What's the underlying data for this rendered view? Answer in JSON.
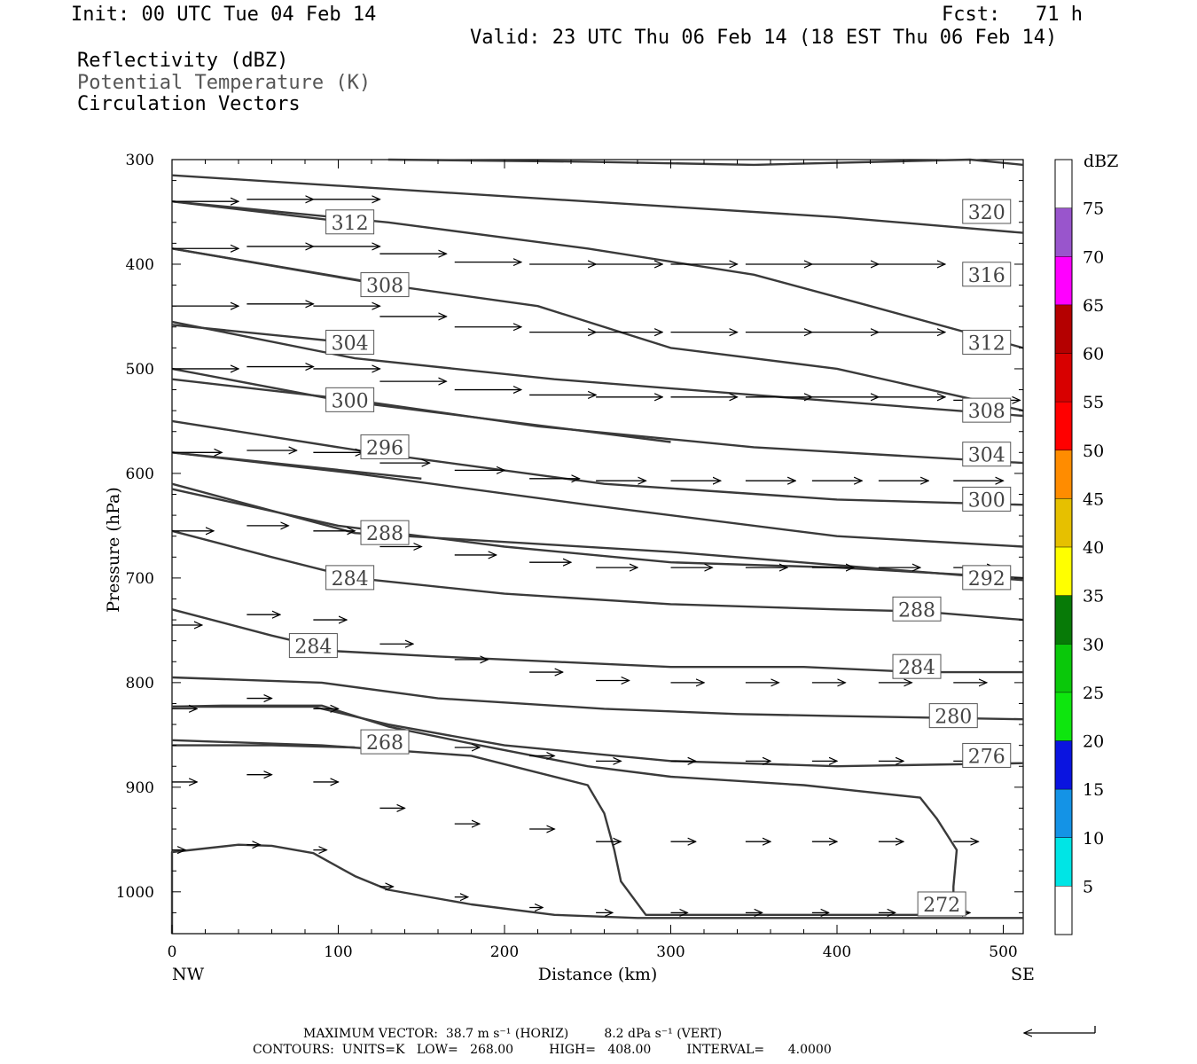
{
  "header": {
    "init": "Init: 00 UTC Tue 04 Feb 14",
    "fcst": "Fcst:   71 h",
    "valid": "Valid: 23 UTC Thu 06 Feb 14 (18 EST Thu 06 Feb 14)",
    "field1": "Reflectivity (dBZ)",
    "field2": "Potential Temperature (K)",
    "field3": "Circulation Vectors"
  },
  "colors": {
    "contour": "#3a3a3a",
    "legend_title_grey": "#555555",
    "scale": [
      "#ffffff",
      "#00e5e5",
      "#1493e6",
      "#0a14e0",
      "#0ee60e",
      "#0ac80a",
      "#077a07",
      "#ffff00",
      "#e6c000",
      "#ff8c00",
      "#ff0000",
      "#d80000",
      "#b40000",
      "#ff00ff",
      "#9955cc",
      "#ffffff"
    ]
  },
  "chart_data": {
    "type": "cross-section",
    "xlabel": "Distance (km)",
    "ylabel": "Pressure (hPa)",
    "xlim": [
      0,
      512
    ],
    "ylim": [
      300,
      1040
    ],
    "x_ticks": [
      "0",
      "100",
      "200",
      "300",
      "400",
      "500"
    ],
    "y_ticks": [
      "300",
      "400",
      "500",
      "600",
      "700",
      "800",
      "900",
      "1000"
    ],
    "x_end_labels": [
      "NW",
      "SE"
    ],
    "theta_contours": [
      {
        "label": "",
        "points": [
          [
            0,
            1040
          ],
          [
            0,
            962
          ],
          [
            40,
            955
          ],
          [
            60,
            956
          ],
          [
            85,
            963
          ],
          [
            110,
            985
          ],
          [
            130,
            998
          ],
          [
            180,
            1012
          ],
          [
            230,
            1022
          ],
          [
            280,
            1025
          ],
          [
            512,
            1025
          ]
        ]
      },
      {
        "label": "272",
        "label_at": [
          463,
          1012
        ],
        "points": [
          [
            0,
            855
          ],
          [
            90,
            860
          ],
          [
            180,
            870
          ],
          [
            250,
            898
          ],
          [
            260,
            925
          ],
          [
            266,
            960
          ],
          [
            270,
            990
          ],
          [
            285,
            1022
          ],
          [
            470,
            1022
          ],
          [
            470,
            995
          ],
          [
            472,
            960
          ],
          [
            460,
            930
          ],
          [
            450,
            910
          ],
          [
            380,
            898
          ],
          [
            300,
            890
          ],
          [
            250,
            880
          ],
          [
            185,
            860
          ],
          [
            130,
            842
          ],
          [
            90,
            822
          ],
          [
            30,
            822
          ],
          [
            0,
            823
          ]
        ]
      },
      {
        "label": "268",
        "label_at": [
          128,
          857
        ],
        "points": [
          [
            0,
            860
          ],
          [
            60,
            860
          ],
          [
            110,
            862
          ]
        ]
      },
      {
        "label": "276",
        "label_at": [
          490,
          870
        ],
        "points": [
          [
            0,
            823
          ],
          [
            85,
            823
          ],
          [
            130,
            840
          ],
          [
            200,
            860
          ],
          [
            300,
            875
          ],
          [
            400,
            880
          ],
          [
            512,
            877
          ]
        ]
      },
      {
        "label": "280",
        "label_at": [
          470,
          832
        ],
        "points": [
          [
            0,
            795
          ],
          [
            90,
            800
          ],
          [
            160,
            815
          ],
          [
            260,
            825
          ],
          [
            340,
            830
          ],
          [
            400,
            832
          ],
          [
            512,
            835
          ]
        ]
      },
      {
        "label": "284",
        "label_at": [
          85,
          765
        ],
        "points": [
          [
            0,
            730
          ],
          [
            60,
            755
          ],
          [
            100,
            770
          ],
          [
            160,
            775
          ],
          [
            230,
            780
          ],
          [
            300,
            785
          ],
          [
            380,
            785
          ],
          [
            450,
            790
          ],
          [
            512,
            790
          ]
        ]
      },
      {
        "label": "284",
        "label_at": [
          448,
          785
        ],
        "points": [
          [
            0,
            730
          ],
          [
            512,
            730
          ]
        ],
        "hidden": true
      },
      {
        "label": "288",
        "label_at": [
          448,
          730
        ],
        "points": [
          [
            0,
            655
          ],
          [
            60,
            680
          ],
          [
            110,
            700
          ],
          [
            200,
            715
          ],
          [
            300,
            725
          ],
          [
            400,
            730
          ],
          [
            450,
            732
          ],
          [
            512,
            740
          ]
        ]
      },
      {
        "label": "284",
        "label_at": [
          107,
          700
        ],
        "points": [
          [
            0,
            615
          ],
          [
            100,
            650
          ],
          [
            200,
            670
          ],
          [
            300,
            685
          ],
          [
            400,
            690
          ],
          [
            512,
            700
          ]
        ]
      },
      {
        "label": "288",
        "label_at": [
          128,
          657
        ],
        "points": [
          [
            0,
            610
          ],
          [
            110,
            657
          ],
          [
            300,
            675
          ],
          [
            512,
            702
          ]
        ]
      },
      {
        "label": "292",
        "label_at": [
          490,
          700
        ],
        "points": [
          [
            0,
            580
          ],
          [
            110,
            600
          ],
          [
            250,
            630
          ],
          [
            400,
            660
          ],
          [
            512,
            670
          ]
        ]
      },
      {
        "label": "300",
        "label_at": [
          490,
          625
        ],
        "points": [
          [
            0,
            550
          ],
          [
            120,
            580
          ],
          [
            260,
            610
          ],
          [
            400,
            625
          ],
          [
            512,
            630
          ]
        ]
      },
      {
        "label": "296",
        "label_at": [
          128,
          575
        ],
        "points": [
          [
            0,
            580
          ],
          [
            60,
            590
          ],
          [
            150,
            605
          ]
        ]
      },
      {
        "label": "304",
        "label_at": [
          490,
          582
        ],
        "points": [
          [
            0,
            510
          ],
          [
            110,
            530
          ],
          [
            220,
            555
          ],
          [
            350,
            575
          ],
          [
            512,
            590
          ]
        ]
      },
      {
        "label": "300",
        "label_at": [
          107,
          530
        ],
        "points": [
          [
            0,
            500
          ],
          [
            100,
            530
          ],
          [
            200,
            550
          ],
          [
            300,
            570
          ]
        ]
      },
      {
        "label": "308",
        "label_at": [
          490,
          540
        ],
        "points": [
          [
            0,
            455
          ],
          [
            110,
            490
          ],
          [
            230,
            510
          ],
          [
            350,
            525
          ],
          [
            512,
            545
          ]
        ]
      },
      {
        "label": "304",
        "label_at": [
          107,
          475
        ],
        "points": [
          [
            0,
            458
          ],
          [
            107,
            475
          ]
        ]
      },
      {
        "label": "312",
        "label_at": [
          490,
          475
        ],
        "points": [
          [
            0,
            385
          ],
          [
            130,
            420
          ],
          [
            220,
            440
          ],
          [
            300,
            480
          ],
          [
            400,
            500
          ],
          [
            512,
            540
          ]
        ]
      },
      {
        "label": "308",
        "label_at": [
          128,
          420
        ],
        "points": [
          [
            0,
            385
          ],
          [
            128,
            420
          ]
        ]
      },
      {
        "label": "316",
        "label_at": [
          490,
          410
        ],
        "points": [
          [
            0,
            340
          ],
          [
            130,
            360
          ],
          [
            250,
            385
          ],
          [
            350,
            410
          ],
          [
            420,
            440
          ],
          [
            512,
            480
          ]
        ]
      },
      {
        "label": "312",
        "label_at": [
          107,
          360
        ],
        "points": [
          [
            0,
            340
          ],
          [
            107,
            360
          ]
        ]
      },
      {
        "label": "320",
        "label_at": [
          490,
          350
        ],
        "points": [
          [
            0,
            315
          ],
          [
            150,
            330
          ],
          [
            300,
            345
          ],
          [
            400,
            355
          ],
          [
            512,
            370
          ]
        ]
      },
      {
        "label": "",
        "points": [
          [
            130,
            300
          ],
          [
            250,
            302
          ],
          [
            350,
            305
          ],
          [
            480,
            300
          ],
          [
            512,
            305
          ]
        ]
      }
    ],
    "vector_rows_note": "circulation vectors (horizontal-dominant, pointing SE)",
    "vectors": [
      [
        0,
        340,
        40,
        340
      ],
      [
        45,
        338,
        85,
        338
      ],
      [
        85,
        338,
        125,
        338
      ],
      [
        0,
        385,
        40,
        385
      ],
      [
        45,
        383,
        85,
        383
      ],
      [
        85,
        383,
        125,
        383
      ],
      [
        125,
        390,
        165,
        390
      ],
      [
        170,
        398,
        210,
        398
      ],
      [
        215,
        400,
        255,
        400
      ],
      [
        255,
        400,
        295,
        400
      ],
      [
        300,
        400,
        340,
        400
      ],
      [
        345,
        400,
        385,
        400
      ],
      [
        385,
        400,
        425,
        400
      ],
      [
        425,
        400,
        465,
        400
      ],
      [
        0,
        440,
        40,
        440
      ],
      [
        45,
        438,
        85,
        438
      ],
      [
        85,
        440,
        125,
        440
      ],
      [
        125,
        450,
        165,
        450
      ],
      [
        170,
        460,
        210,
        460
      ],
      [
        215,
        465,
        255,
        465
      ],
      [
        255,
        465,
        295,
        465
      ],
      [
        300,
        465,
        340,
        465
      ],
      [
        345,
        465,
        385,
        465
      ],
      [
        385,
        465,
        425,
        465
      ],
      [
        425,
        465,
        465,
        465
      ],
      [
        0,
        500,
        40,
        500
      ],
      [
        45,
        498,
        85,
        498
      ],
      [
        85,
        500,
        125,
        500
      ],
      [
        125,
        512,
        165,
        512
      ],
      [
        170,
        520,
        210,
        520
      ],
      [
        215,
        525,
        255,
        525
      ],
      [
        255,
        527,
        295,
        527
      ],
      [
        300,
        527,
        340,
        527
      ],
      [
        345,
        527,
        385,
        527
      ],
      [
        385,
        527,
        425,
        527
      ],
      [
        425,
        527,
        465,
        527
      ],
      [
        470,
        530,
        510,
        530
      ],
      [
        0,
        580,
        30,
        580
      ],
      [
        45,
        578,
        75,
        578
      ],
      [
        85,
        580,
        115,
        580
      ],
      [
        125,
        590,
        155,
        590
      ],
      [
        170,
        597,
        200,
        597
      ],
      [
        215,
        605,
        245,
        605
      ],
      [
        255,
        607,
        285,
        607
      ],
      [
        300,
        607,
        330,
        607
      ],
      [
        345,
        607,
        375,
        607
      ],
      [
        385,
        607,
        415,
        607
      ],
      [
        425,
        607,
        455,
        607
      ],
      [
        470,
        607,
        500,
        607
      ],
      [
        0,
        655,
        25,
        655
      ],
      [
        45,
        650,
        70,
        650
      ],
      [
        85,
        655,
        110,
        655
      ],
      [
        125,
        670,
        150,
        670
      ],
      [
        170,
        678,
        195,
        678
      ],
      [
        215,
        685,
        240,
        685
      ],
      [
        255,
        690,
        280,
        690
      ],
      [
        300,
        690,
        325,
        690
      ],
      [
        345,
        690,
        370,
        690
      ],
      [
        385,
        690,
        410,
        690
      ],
      [
        425,
        690,
        450,
        690
      ],
      [
        470,
        690,
        495,
        690
      ],
      [
        0,
        745,
        18,
        745
      ],
      [
        45,
        735,
        65,
        735
      ],
      [
        85,
        740,
        105,
        740
      ],
      [
        125,
        763,
        145,
        763
      ],
      [
        170,
        778,
        190,
        778
      ],
      [
        215,
        790,
        235,
        790
      ],
      [
        255,
        798,
        275,
        798
      ],
      [
        300,
        800,
        320,
        800
      ],
      [
        345,
        800,
        365,
        800
      ],
      [
        385,
        800,
        405,
        800
      ],
      [
        425,
        800,
        445,
        800
      ],
      [
        470,
        800,
        490,
        800
      ],
      [
        0,
        825,
        15,
        825
      ],
      [
        45,
        815,
        60,
        815
      ],
      [
        85,
        825,
        100,
        825
      ],
      [
        125,
        850,
        140,
        850
      ],
      [
        170,
        862,
        185,
        862
      ],
      [
        215,
        870,
        230,
        870
      ],
      [
        255,
        875,
        270,
        875
      ],
      [
        300,
        875,
        315,
        875
      ],
      [
        345,
        875,
        360,
        875
      ],
      [
        385,
        875,
        400,
        875
      ],
      [
        425,
        875,
        440,
        875
      ],
      [
        470,
        875,
        485,
        875
      ],
      [
        0,
        895,
        15,
        895
      ],
      [
        45,
        888,
        60,
        888
      ],
      [
        85,
        895,
        100,
        895
      ],
      [
        125,
        920,
        140,
        920
      ],
      [
        170,
        935,
        185,
        935
      ],
      [
        215,
        940,
        230,
        940
      ],
      [
        255,
        952,
        270,
        952
      ],
      [
        300,
        952,
        315,
        952
      ],
      [
        345,
        952,
        360,
        952
      ],
      [
        385,
        952,
        400,
        952
      ],
      [
        425,
        952,
        440,
        952
      ],
      [
        470,
        952,
        485,
        952
      ],
      [
        0,
        960,
        8,
        960
      ],
      [
        45,
        955,
        53,
        955
      ],
      [
        85,
        960,
        93,
        960
      ],
      [
        125,
        995,
        133,
        995
      ],
      [
        170,
        1005,
        178,
        1005
      ],
      [
        215,
        1015,
        223,
        1015
      ],
      [
        255,
        1020,
        265,
        1020
      ],
      [
        300,
        1020,
        310,
        1020
      ],
      [
        345,
        1020,
        355,
        1020
      ],
      [
        385,
        1020,
        395,
        1020
      ],
      [
        425,
        1020,
        435,
        1020
      ],
      [
        470,
        1020,
        480,
        1020
      ]
    ],
    "colorbar": {
      "title": "dBZ",
      "labels": [
        "5",
        "10",
        "15",
        "20",
        "25",
        "30",
        "35",
        "40",
        "45",
        "50",
        "55",
        "60",
        "65",
        "70",
        "75"
      ]
    }
  },
  "footer": {
    "line1": "MAXIMUM VECTOR:  38.7 m s⁻¹ (HORIZ)         8.2 dPa s⁻¹ (VERT)",
    "line2": "CONTOURS:  UNITS=K   LOW=   268.00         HIGH=   408.00         INTERVAL=      4.0000"
  }
}
